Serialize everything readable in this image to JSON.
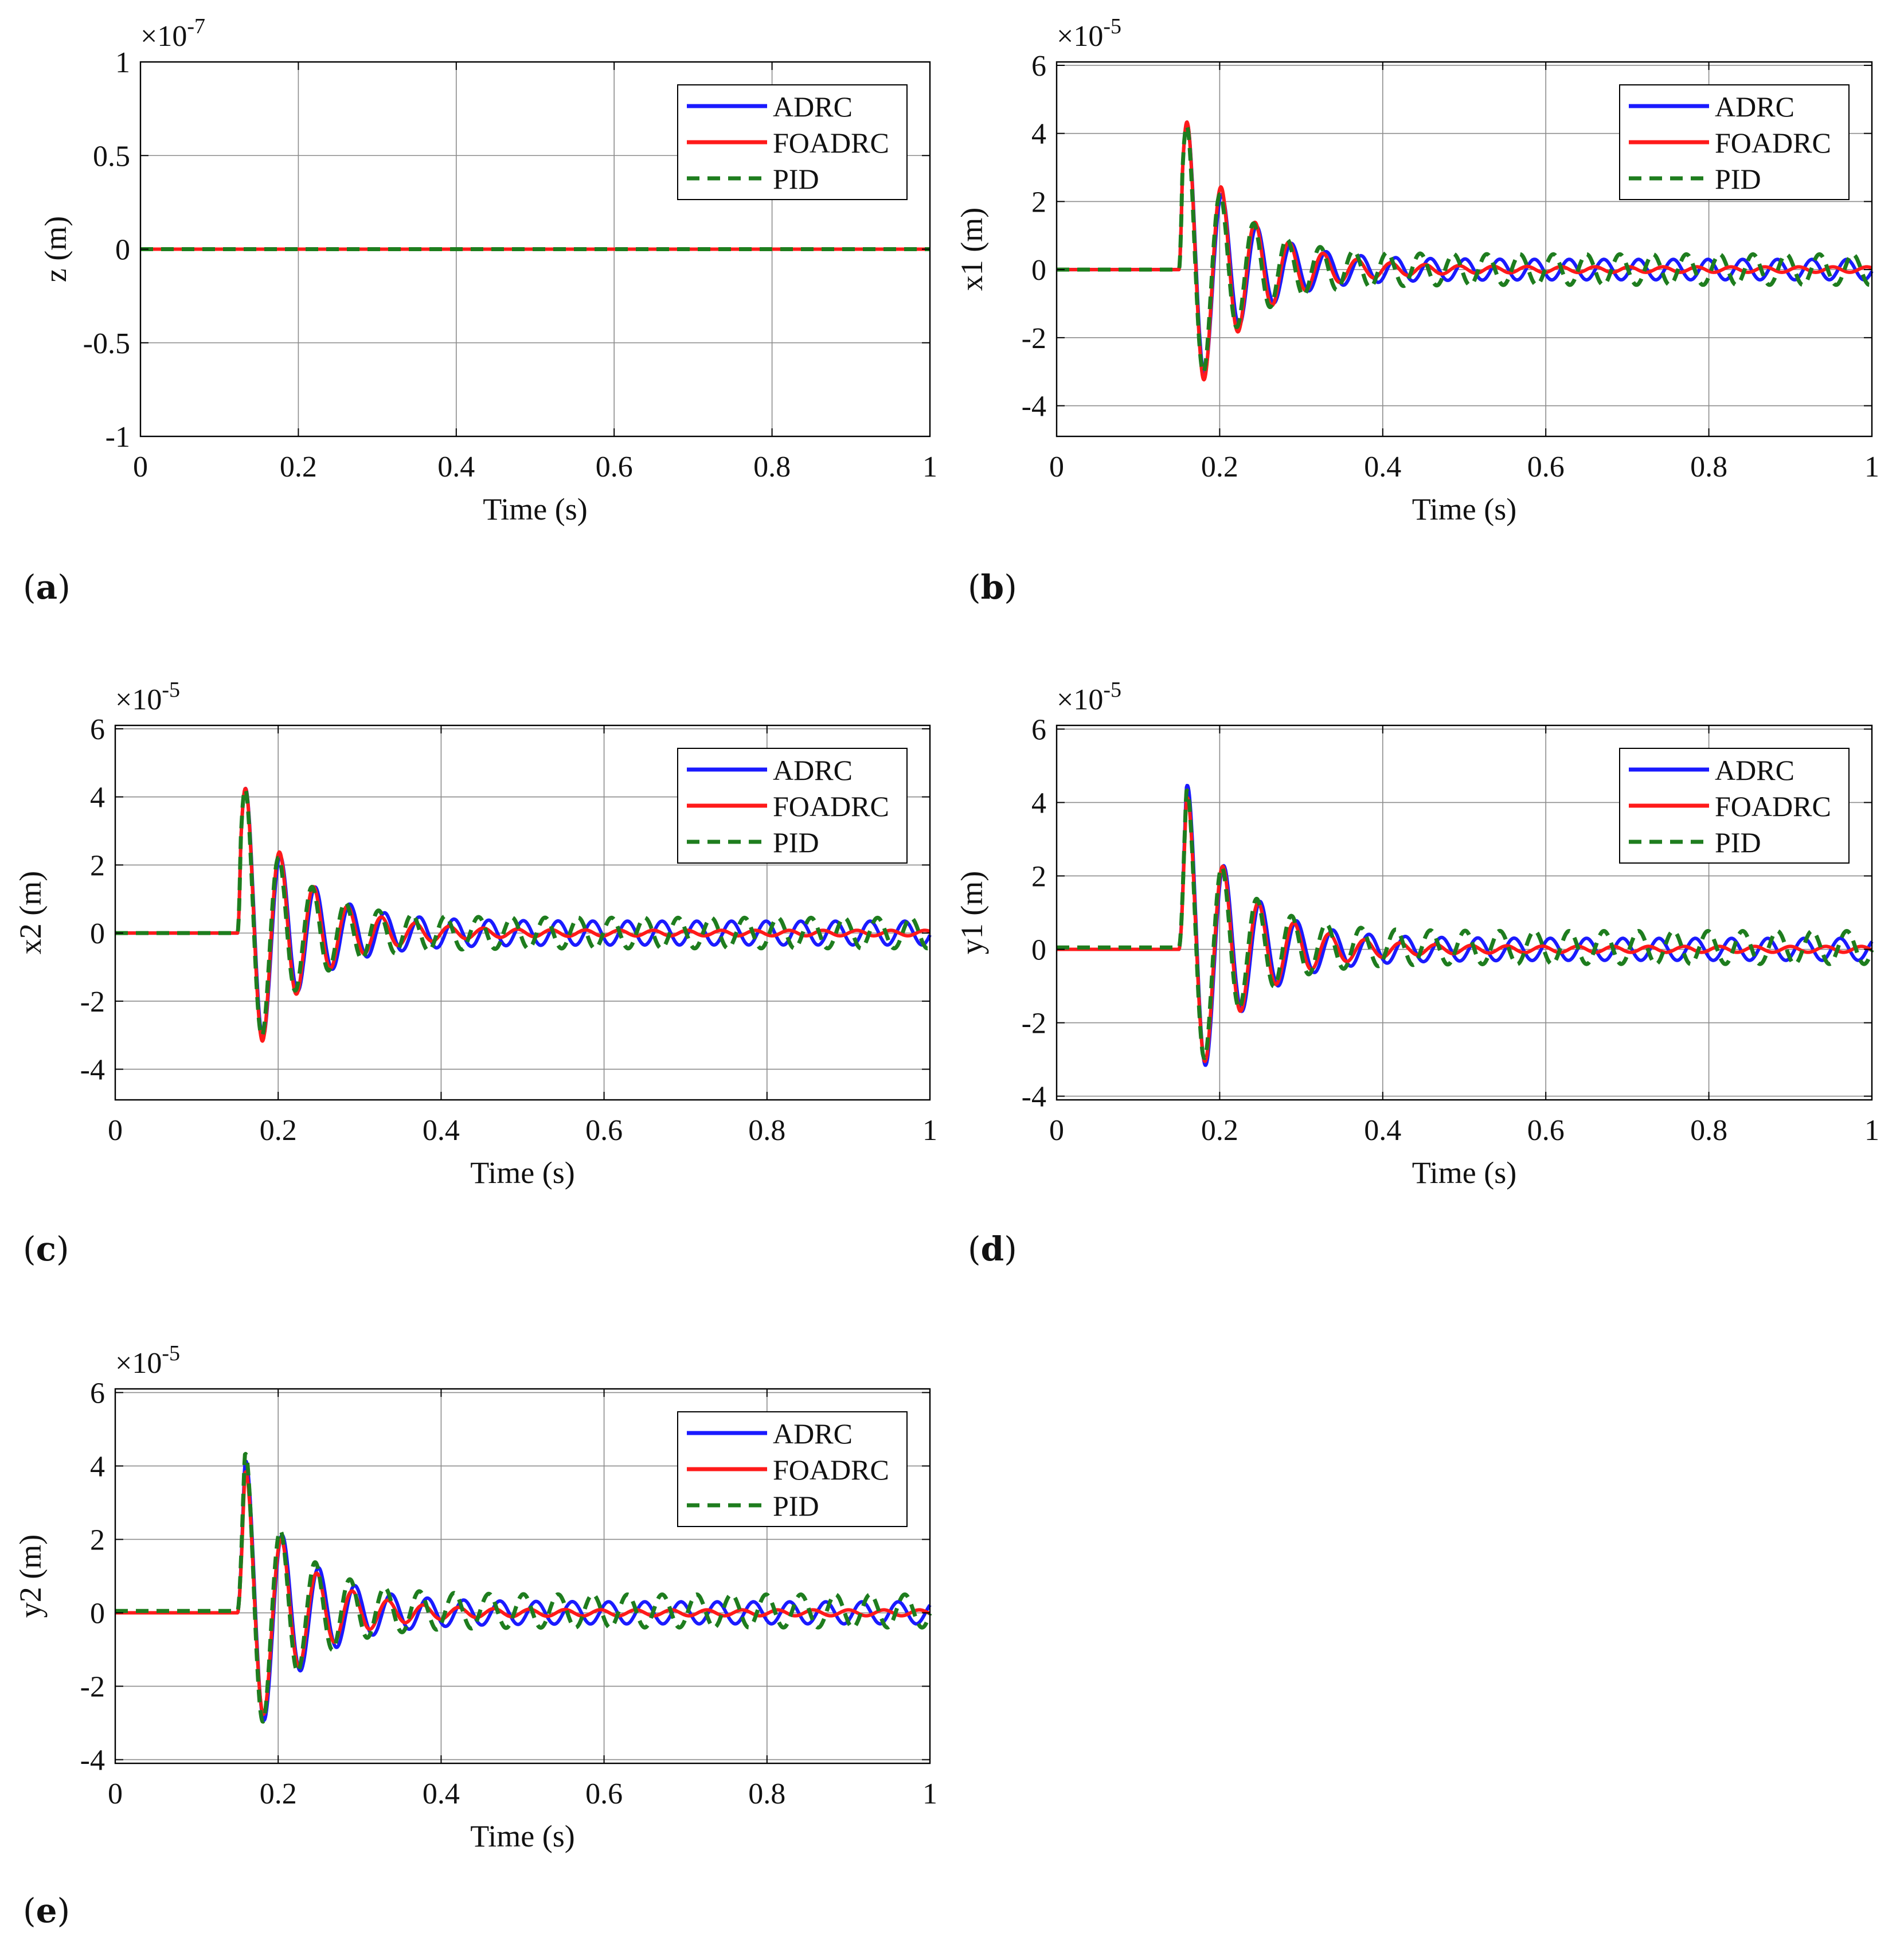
{
  "colors": {
    "ADRC": "#1a1aff",
    "FOADRC": "#ff1a1a",
    "PID": "#1e7d1e",
    "grid": "#8c8c8c",
    "axis": "#000000"
  },
  "chart_data": [
    {
      "id": "a",
      "panel_label": "a",
      "type": "line",
      "ylabel": "z (m)",
      "xlabel": "Time (s)",
      "exponent": "-7",
      "xlim": [
        0,
        1
      ],
      "ylim": [
        -1,
        1
      ],
      "xticks": [
        0,
        0.2,
        0.4,
        0.6,
        0.8,
        1
      ],
      "xtick_labels": [
        "0",
        "0.2",
        "0.4",
        "0.6",
        "0.8",
        "1"
      ],
      "yticks": [
        -1,
        -0.5,
        0,
        0.5,
        1
      ],
      "ytick_labels": [
        "-1",
        "-0.5",
        "0",
        "0.5",
        "1"
      ],
      "grid": true,
      "legend": "top-right",
      "series": [
        {
          "name": "ADRC",
          "style": "solid",
          "params": {
            "t0": 0.15,
            "A": 0,
            "freq": 24,
            "tau": 0.12,
            "B": 0,
            "freq2": 24,
            "rise": 0,
            "base": 0
          }
        },
        {
          "name": "FOADRC",
          "style": "solid",
          "params": {
            "t0": 0.15,
            "A": 0,
            "freq": 24,
            "tau": 0.1,
            "B": 0,
            "freq2": 24,
            "rise": 0,
            "base": 0
          }
        },
        {
          "name": "PID",
          "style": "dashed",
          "params": {
            "t0": 0.15,
            "A": 0,
            "freq": 24,
            "tau": 0.12,
            "B": 0,
            "freq2": 24,
            "rise": 0,
            "base": 0
          }
        }
      ]
    },
    {
      "id": "b",
      "panel_label": "b",
      "type": "line",
      "ylabel": "x1 (m)",
      "xlabel": "Time (s)",
      "exponent": "-5",
      "xlim": [
        0,
        1
      ],
      "ylim": [
        -4.9,
        6.1
      ],
      "xticks": [
        0,
        0.2,
        0.4,
        0.6,
        0.8,
        1
      ],
      "xtick_labels": [
        "0",
        "0.2",
        "0.4",
        "0.6",
        "0.8",
        "1"
      ],
      "yticks": [
        -4,
        -2,
        0,
        2,
        4,
        6
      ],
      "ytick_labels": [
        "-4",
        "-2",
        "0",
        "2",
        "4",
        "6"
      ],
      "grid": true,
      "legend": "top-right",
      "series": [
        {
          "name": "ADRC",
          "style": "solid",
          "params": {
            "t0": 0.15,
            "A": 5.1,
            "freq": 23.5,
            "tau": 0.058,
            "B": 0.3,
            "freq2": 23.5,
            "rise": 0.004,
            "base": 0
          }
        },
        {
          "name": "FOADRC",
          "style": "solid",
          "params": {
            "t0": 0.15,
            "A": 5.0,
            "freq": 24.0,
            "tau": 0.07,
            "B": 0.08,
            "freq2": 24.0,
            "rise": 0.004,
            "base": 0
          }
        },
        {
          "name": "PID",
          "style": "dashed",
          "params": {
            "t0": 0.15,
            "A": 5.0,
            "freq": 24.5,
            "tau": 0.055,
            "B": 0.45,
            "freq2": 24.5,
            "rise": 0.004,
            "base": 0
          }
        }
      ]
    },
    {
      "id": "c",
      "panel_label": "c",
      "type": "line",
      "ylabel": "x2 (m)",
      "xlabel": "Time (s)",
      "exponent": "-5",
      "xlim": [
        0,
        1
      ],
      "ylim": [
        -4.9,
        6.1
      ],
      "xticks": [
        0,
        0.2,
        0.4,
        0.6,
        0.8,
        1
      ],
      "xtick_labels": [
        "0",
        "0.2",
        "0.4",
        "0.6",
        "0.8",
        "1"
      ],
      "yticks": [
        -4,
        -2,
        0,
        2,
        4,
        6
      ],
      "ytick_labels": [
        "-4",
        "-2",
        "0",
        "2",
        "4",
        "6"
      ],
      "grid": true,
      "legend": "top-right",
      "series": [
        {
          "name": "ADRC",
          "style": "solid",
          "params": {
            "t0": 0.15,
            "A": 5.0,
            "freq": 23.5,
            "tau": 0.06,
            "B": 0.35,
            "freq2": 23.5,
            "rise": 0.004,
            "base": 0
          }
        },
        {
          "name": "FOADRC",
          "style": "solid",
          "params": {
            "t0": 0.15,
            "A": 4.9,
            "freq": 24.0,
            "tau": 0.07,
            "B": 0.08,
            "freq2": 24.0,
            "rise": 0.004,
            "base": 0
          }
        },
        {
          "name": "PID",
          "style": "dashed",
          "params": {
            "t0": 0.15,
            "A": 5.0,
            "freq": 24.5,
            "tau": 0.055,
            "B": 0.45,
            "freq2": 24.5,
            "rise": 0.004,
            "base": 0
          }
        }
      ]
    },
    {
      "id": "d",
      "panel_label": "d",
      "type": "line",
      "ylabel": "y1 (m)",
      "xlabel": "Time (s)",
      "exponent": "-5",
      "xlim": [
        0,
        1
      ],
      "ylim": [
        -4.1,
        6.1
      ],
      "xticks": [
        0,
        0.2,
        0.4,
        0.6,
        0.8,
        1
      ],
      "xtick_labels": [
        "0",
        "0.2",
        "0.4",
        "0.6",
        "0.8",
        "1"
      ],
      "yticks": [
        -4,
        -2,
        0,
        2,
        4,
        6
      ],
      "ytick_labels": [
        "-4",
        "-2",
        "0",
        "2",
        "4",
        "6"
      ],
      "grid": true,
      "legend": "top-right",
      "series": [
        {
          "name": "ADRC",
          "style": "solid",
          "params": {
            "t0": 0.15,
            "A": 5.3,
            "freq": 22.5,
            "tau": 0.06,
            "B": 0.3,
            "freq2": 22.5,
            "rise": 0.009,
            "base": 0
          }
        },
        {
          "name": "FOADRC",
          "style": "solid",
          "params": {
            "t0": 0.15,
            "A": 4.8,
            "freq": 23.0,
            "tau": 0.07,
            "B": 0.08,
            "freq2": 23.0,
            "rise": 0.009,
            "base": 0
          }
        },
        {
          "name": "PID",
          "style": "dashed",
          "params": {
            "t0": 0.15,
            "A": 5.1,
            "freq": 23.5,
            "tau": 0.055,
            "B": 0.45,
            "freq2": 23.5,
            "rise": 0.009,
            "base": 0.05
          }
        }
      ]
    },
    {
      "id": "e",
      "panel_label": "e",
      "type": "line",
      "ylabel": "y2 (m)",
      "xlabel": "Time (s)",
      "exponent": "-5",
      "xlim": [
        0,
        1
      ],
      "ylim": [
        -4.1,
        6.1
      ],
      "xticks": [
        0,
        0.2,
        0.4,
        0.6,
        0.8,
        1
      ],
      "xtick_labels": [
        "0",
        "0.2",
        "0.4",
        "0.6",
        "0.8",
        "1"
      ],
      "yticks": [
        -4,
        -2,
        0,
        2,
        4,
        6
      ],
      "ytick_labels": [
        "-4",
        "-2",
        "0",
        "2",
        "4",
        "6"
      ],
      "grid": true,
      "legend": "top-right",
      "series": [
        {
          "name": "ADRC",
          "style": "solid",
          "params": {
            "t0": 0.15,
            "A": 4.9,
            "freq": 22.5,
            "tau": 0.06,
            "B": 0.3,
            "freq2": 22.5,
            "rise": 0.009,
            "base": 0
          }
        },
        {
          "name": "FOADRC",
          "style": "solid",
          "params": {
            "t0": 0.15,
            "A": 4.5,
            "freq": 23.0,
            "tau": 0.065,
            "B": 0.08,
            "freq2": 23.0,
            "rise": 0.009,
            "base": 0
          }
        },
        {
          "name": "PID",
          "style": "dashed",
          "params": {
            "t0": 0.15,
            "A": 5.1,
            "freq": 23.5,
            "tau": 0.055,
            "B": 0.45,
            "freq2": 23.5,
            "rise": 0.009,
            "base": 0.05
          }
        }
      ]
    }
  ]
}
